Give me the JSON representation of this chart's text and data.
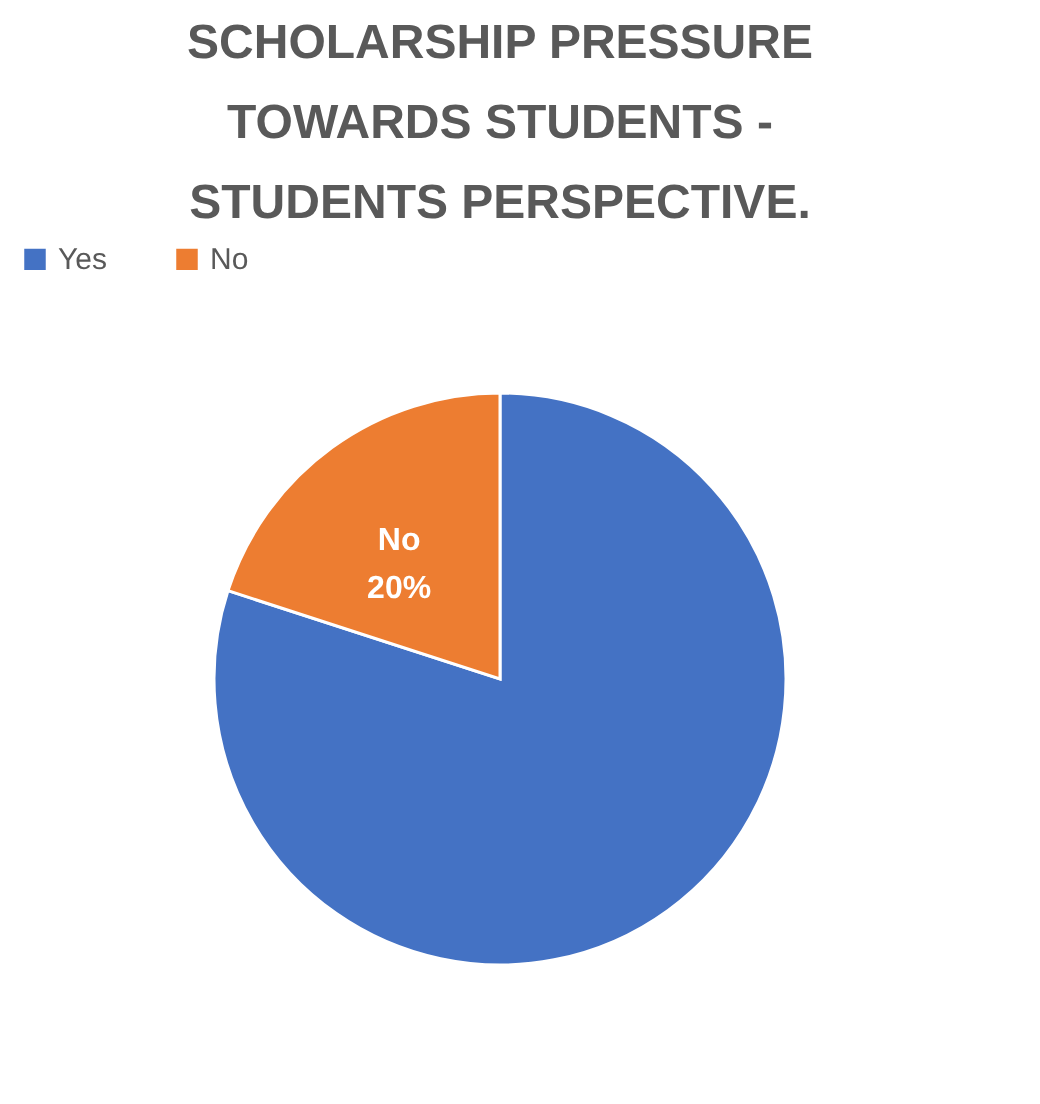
{
  "chart_data": {
    "type": "pie",
    "title": "SCHOLARSHIP PRESSURE TOWARDS STUDENTS - STUDENTS PERSPECTIVE.",
    "categories": [
      "Yes",
      "No"
    ],
    "values": [
      80,
      20
    ],
    "colors": [
      "#4472c4",
      "#ed7d31"
    ],
    "value_labels": [
      null,
      "20%"
    ],
    "legend": "top"
  }
}
